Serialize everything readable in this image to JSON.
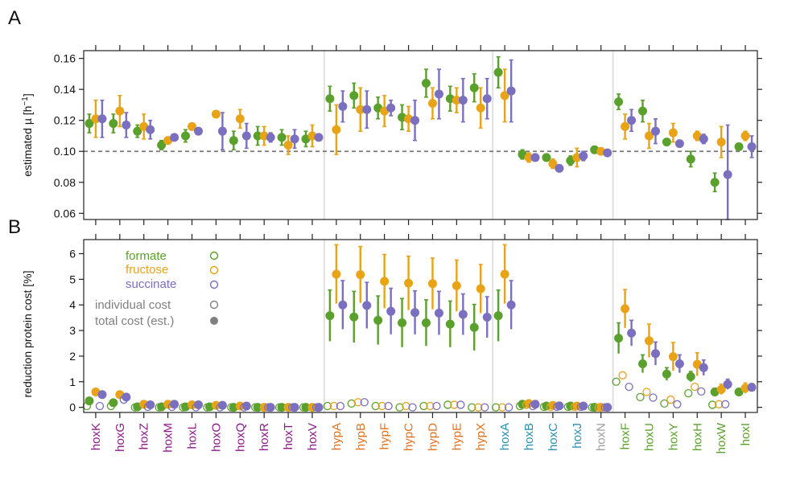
{
  "chart_data": [
    {
      "panel": "A",
      "type": "scatter",
      "ylabel": "estimated µ [h",
      "ylabel_sup": "−1",
      "ylabel_end": "]",
      "ylim": [
        0.056,
        0.165
      ],
      "yticks": [
        "0.06",
        "0.08",
        "0.10",
        "0.12",
        "0.14",
        "0.16"
      ],
      "reference_line": 0.1,
      "categories": [
        "hoxK",
        "hoxG",
        "hoxZ",
        "hoxM",
        "hoxL",
        "hoxO",
        "hoxQ",
        "hoxR",
        "hoxT",
        "hoxV",
        "hypA",
        "hypB",
        "hypF",
        "hypC",
        "hypD",
        "hypE",
        "hypX",
        "hoxA",
        "hoxB",
        "hoxC",
        "hoxJ",
        "hoxN",
        "hoxF",
        "hoxU",
        "hoxY",
        "hoxH",
        "hoxW",
        "hoxI"
      ],
      "series": [
        {
          "name": "formate",
          "color": "#5aa02c",
          "values": [
            0.118,
            0.118,
            0.113,
            0.104,
            0.11,
            null,
            0.107,
            0.11,
            0.109,
            0.108,
            0.134,
            0.136,
            0.128,
            0.122,
            0.144,
            0.134,
            0.141,
            0.151,
            0.098,
            0.096,
            0.094,
            0.101,
            0.132,
            0.126,
            0.106,
            0.095,
            0.08,
            0.103
          ],
          "err": [
            0.006,
            0.006,
            0.004,
            0.003,
            0.004,
            null,
            0.006,
            0.006,
            0.005,
            0.005,
            0.008,
            0.008,
            0.007,
            0.008,
            0.009,
            0.008,
            0.009,
            0.01,
            0.003,
            0.002,
            0.003,
            0.002,
            0.005,
            0.007,
            0.002,
            0.005,
            0.006,
            0.002
          ]
        },
        {
          "name": "fructose",
          "color": "#e8a317",
          "values": [
            0.121,
            0.126,
            0.116,
            0.107,
            0.116,
            0.124,
            0.121,
            0.11,
            0.104,
            0.11,
            0.114,
            0.127,
            0.126,
            0.121,
            0.131,
            0.133,
            0.128,
            0.136,
            0.096,
            0.092,
            0.096,
            0.1,
            0.116,
            0.11,
            0.112,
            0.11,
            0.106,
            0.11
          ],
          "err": [
            0.012,
            0.01,
            0.008,
            0.002,
            0.002,
            0.001,
            0.006,
            0.006,
            0.006,
            0.007,
            0.016,
            0.014,
            0.01,
            0.008,
            0.01,
            0.008,
            0.013,
            0.017,
            0.003,
            0.003,
            0.006,
            0.001,
            0.008,
            0.008,
            0.006,
            0.003,
            0.01,
            0.003
          ]
        },
        {
          "name": "succinate",
          "color": "#7b6fbf",
          "values": [
            0.121,
            0.117,
            0.114,
            0.109,
            0.113,
            0.113,
            0.11,
            0.109,
            0.108,
            0.109,
            0.129,
            0.127,
            0.128,
            0.12,
            0.137,
            0.133,
            0.134,
            0.139,
            0.096,
            0.089,
            0.097,
            0.099,
            0.12,
            0.113,
            0.105,
            0.108,
            0.085,
            0.103
          ],
          "err": [
            0.012,
            0.008,
            0.006,
            0.001,
            0.002,
            0.012,
            0.008,
            0.003,
            0.006,
            0.002,
            0.01,
            0.012,
            0.005,
            0.013,
            0.016,
            0.014,
            0.013,
            0.02,
            0.001,
            0.001,
            0.003,
            0.002,
            0.007,
            0.008,
            0.001,
            0.003,
            0.032,
            0.007
          ]
        }
      ]
    },
    {
      "panel": "B",
      "type": "scatter",
      "ylabel": "reduction protein cost [%]",
      "ylim": [
        -0.2,
        6.55
      ],
      "yticks": [
        "0",
        "1",
        "2",
        "3",
        "4",
        "5",
        "6"
      ],
      "categories": [
        "hoxK",
        "hoxG",
        "hoxZ",
        "hoxM",
        "hoxL",
        "hoxO",
        "hoxQ",
        "hoxR",
        "hoxT",
        "hoxV",
        "hypA",
        "hypB",
        "hypF",
        "hypC",
        "hypD",
        "hypE",
        "hypX",
        "hoxA",
        "hoxB",
        "hoxC",
        "hoxJ",
        "hoxN",
        "hoxF",
        "hoxU",
        "hoxY",
        "hoxH",
        "hoxW",
        "hoxI"
      ],
      "category_colors": [
        "#8b1a89",
        "#8b1a89",
        "#8b1a89",
        "#8b1a89",
        "#8b1a89",
        "#8b1a89",
        "#8b1a89",
        "#8b1a89",
        "#8b1a89",
        "#8b1a89",
        "#e2711d",
        "#e2711d",
        "#e2711d",
        "#e2711d",
        "#e2711d",
        "#e2711d",
        "#e2711d",
        "#2a8fb0",
        "#2a8fb0",
        "#2a8fb0",
        "#2a8fb0",
        "#9e9e9e",
        "#5aa02c",
        "#5aa02c",
        "#5aa02c",
        "#5aa02c",
        "#5aa02c",
        "#5aa02c"
      ],
      "series": [
        {
          "name": "formate",
          "color": "#5aa02c",
          "total": [
            0.25,
            0.18,
            0.02,
            0.02,
            0.02,
            0.02,
            0.0,
            0.0,
            0.0,
            0.0,
            3.58,
            3.53,
            3.4,
            3.3,
            3.3,
            3.25,
            3.12,
            3.58,
            0.12,
            0.05,
            0.05,
            0.0,
            2.7,
            1.7,
            1.3,
            1.2,
            0.6,
            0.6
          ],
          "total_err": [
            0.05,
            0.05,
            0.02,
            0.02,
            0.02,
            0.02,
            0.01,
            0.01,
            0.01,
            0.01,
            1.0,
            1.0,
            0.95,
            0.95,
            0.9,
            0.9,
            0.9,
            1.0,
            0.04,
            0.03,
            0.02,
            0.01,
            0.6,
            0.35,
            0.25,
            0.2,
            0.15,
            0.1
          ],
          "individual": [
            0.05,
            0.05,
            0.0,
            0.0,
            0.0,
            0.0,
            0.0,
            0.0,
            0.0,
            0.0,
            0.05,
            0.15,
            0.05,
            0.0,
            0.05,
            0.1,
            0.0,
            0.0,
            0.05,
            0.02,
            0.02,
            0.0,
            1.0,
            0.4,
            0.15,
            0.55,
            0.1,
            null
          ]
        },
        {
          "name": "fructose",
          "color": "#e8a317",
          "total": [
            0.6,
            0.5,
            0.12,
            0.12,
            0.1,
            0.08,
            0.05,
            0.0,
            0.0,
            0.0,
            5.2,
            5.18,
            4.92,
            4.85,
            4.83,
            4.75,
            4.63,
            5.2,
            0.15,
            0.08,
            0.05,
            0.0,
            3.85,
            2.6,
            1.98,
            1.68,
            0.7,
            0.75
          ],
          "total_err": [
            0.05,
            0.05,
            0.04,
            0.04,
            0.03,
            0.03,
            0.02,
            0.01,
            0.01,
            0.01,
            1.15,
            1.1,
            1.05,
            1.05,
            1.0,
            1.0,
            0.95,
            1.15,
            0.05,
            0.03,
            0.02,
            0.01,
            0.75,
            0.65,
            0.55,
            0.45,
            0.2,
            0.2
          ],
          "individual": [
            null,
            null,
            null,
            null,
            null,
            null,
            null,
            null,
            null,
            null,
            0.05,
            0.2,
            0.05,
            0.05,
            0.05,
            0.1,
            0.0,
            0.0,
            0.1,
            0.02,
            0.02,
            0.0,
            1.25,
            0.6,
            0.3,
            0.8,
            0.12,
            null
          ]
        },
        {
          "name": "succinate",
          "color": "#7b6fbf",
          "total": [
            0.5,
            0.4,
            0.1,
            0.12,
            0.1,
            0.08,
            0.05,
            0.0,
            0.0,
            0.0,
            4.0,
            3.98,
            3.75,
            3.7,
            3.68,
            3.63,
            3.52,
            4.0,
            0.12,
            0.06,
            0.05,
            0.0,
            2.9,
            2.1,
            1.7,
            1.55,
            0.9,
            0.78
          ],
          "total_err": [
            0.05,
            0.05,
            0.03,
            0.03,
            0.03,
            0.02,
            0.02,
            0.01,
            0.01,
            0.01,
            0.95,
            0.9,
            0.9,
            0.85,
            0.85,
            0.8,
            0.8,
            0.95,
            0.04,
            0.03,
            0.02,
            0.01,
            0.5,
            0.45,
            0.35,
            0.3,
            0.2,
            0.15
          ],
          "individual": [
            0.05,
            0.3,
            0.02,
            0.02,
            0.0,
            0.0,
            0.0,
            0.0,
            0.0,
            0.0,
            0.05,
            0.2,
            0.05,
            0.0,
            0.05,
            0.1,
            0.0,
            0.0,
            0.05,
            0.02,
            0.02,
            0.0,
            0.8,
            0.38,
            0.12,
            0.62,
            0.12,
            null
          ]
        }
      ],
      "legend": {
        "entries": [
          "formate",
          "fructose",
          "succinate"
        ],
        "individual_label": "individual cost",
        "total_label": "total cost (est.)",
        "individual_color": "#808080",
        "total_color": "#808080"
      }
    }
  ],
  "panel_labels": [
    "A",
    "B"
  ]
}
